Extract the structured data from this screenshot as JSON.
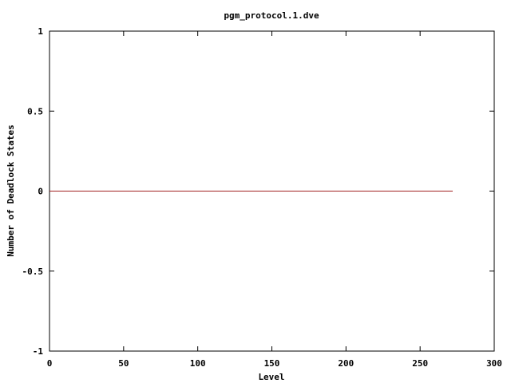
{
  "chart_data": {
    "type": "line",
    "title": "pgm_protocol.1.dve",
    "xlabel": "Level",
    "ylabel": "Number of Deadlock States",
    "xlim": [
      0,
      300
    ],
    "ylim": [
      -1,
      1
    ],
    "xticks": [
      "0",
      "50",
      "100",
      "150",
      "200",
      "250",
      "300"
    ],
    "yticks": [
      "-1",
      "-0.5",
      "0",
      "0.5",
      "1"
    ],
    "grid": false,
    "series": [
      {
        "color": "#a02020",
        "x": [
          0,
          272
        ],
        "y": [
          0,
          0
        ]
      }
    ]
  }
}
